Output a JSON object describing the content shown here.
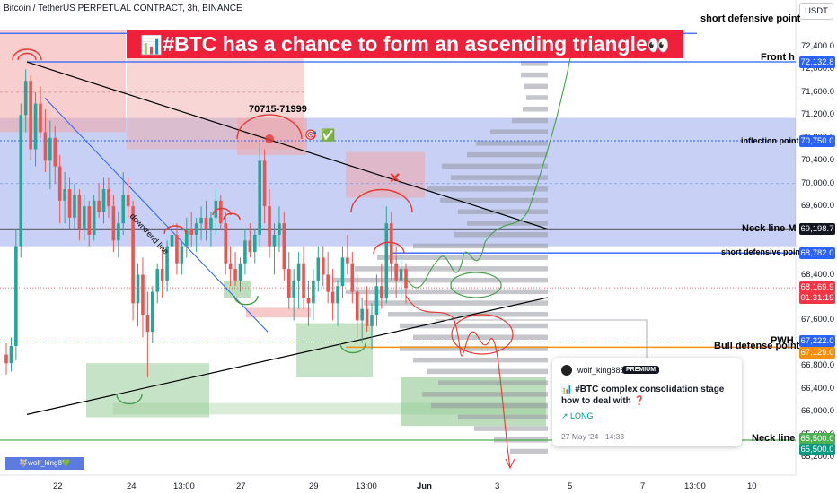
{
  "header": {
    "symbol_line": "Bitcoin / TetherUS PERPETUAL CONTRACT, 3h, BINANCE"
  },
  "currency": "USDT",
  "banner": {
    "icon": "📊",
    "text": "#BTC has a chance to form an ascending triangle",
    "eyes": "👀"
  },
  "annotations": {
    "short_defensive_top": "short defensive point",
    "front_h": "Front h",
    "range": "70715-71999",
    "inflection_point": "inflection point",
    "neck_line_m": "Neck line M",
    "short_defensive_mid": "short defensive point",
    "pwh": "PWH",
    "bull_defense": "Bull defense point",
    "neck_line": "Neck line",
    "downtrend_line": "downtrend line",
    "cross": "✕",
    "check": "✅",
    "target": "🎯"
  },
  "colors": {
    "up": "#26a69a",
    "down": "#ef5350",
    "blue_zone": "#7b91e6",
    "red_zone": "#f2a5a5",
    "green_zone": "#8fc88f",
    "blue_line": "#2962ff",
    "orange_line": "#f5900c"
  },
  "price_tags": [
    {
      "value": "72,132.8",
      "color": "#2962ff"
    },
    {
      "value": "70,750.0",
      "color": "#2962ff"
    },
    {
      "value": "69,198.7",
      "color": "#131722"
    },
    {
      "value": "68,782.0",
      "color": "#2962ff"
    },
    {
      "value": "68,169.9",
      "color": "#f23645"
    },
    {
      "value": "01:31:19",
      "color": "#f23645"
    },
    {
      "value": "67,222.0",
      "color": "#2962ff"
    },
    {
      "value": "67,129.0",
      "color": "#f5900c"
    },
    {
      "value": "65,500.0",
      "color": "#4caf50"
    },
    {
      "value": "65,500.0",
      "color": "#089981"
    }
  ],
  "card": {
    "user": "wolf_king888",
    "badge": "PREMIUM",
    "title": "📊 #BTC complex consolidation stage how to deal with ❓",
    "side": "↗ LONG",
    "date": "27 May '24 · 14:33"
  },
  "watermark": "🐺wolf_king8💚",
  "chart_data": {
    "type": "candlestick",
    "title": "Bitcoin / TetherUS PERPETUAL CONTRACT, 3h, BINANCE",
    "y_ticks": [
      72400,
      72000,
      71600,
      71200,
      70800,
      70400,
      70000,
      69600,
      69200,
      68800,
      68400,
      68000,
      67600,
      67200,
      66800,
      66400,
      66000,
      65600,
      65200
    ],
    "x_ticks": [
      "22",
      "24",
      "13:00",
      "27",
      "29",
      "13:00",
      "Jun",
      "3",
      "5",
      "7",
      "13:00",
      "10"
    ],
    "ylim": [
      65000,
      72700
    ],
    "levels": {
      "short_defensive_top": 72600,
      "front_h": 72132.8,
      "inflection_point": 70750,
      "neck_line_m": 69198.7,
      "short_defensive_mid": 68782,
      "last_price": 68169.9,
      "pwh": 67222,
      "bull_defense": 67129,
      "neck_line": 65500
    },
    "candles": [
      [
        67000,
        67200,
        66650,
        66850
      ],
      [
        66850,
        67300,
        66700,
        67150
      ],
      [
        67150,
        69200,
        66900,
        68900
      ],
      [
        68900,
        71400,
        68700,
        71200
      ],
      [
        71200,
        72000,
        70900,
        71800
      ],
      [
        71800,
        71900,
        70400,
        70600
      ],
      [
        70600,
        71600,
        70300,
        71400
      ],
      [
        71400,
        71700,
        70800,
        70900
      ],
      [
        70900,
        71300,
        70200,
        70400
      ],
      [
        70400,
        71100,
        69900,
        70800
      ],
      [
        70800,
        71000,
        70000,
        70300
      ],
      [
        70300,
        70500,
        69300,
        69700
      ],
      [
        69700,
        70200,
        69300,
        69900
      ],
      [
        69900,
        70100,
        69200,
        69400
      ],
      [
        69400,
        70000,
        69200,
        69800
      ],
      [
        69800,
        69900,
        69000,
        69200
      ],
      [
        69200,
        69800,
        69000,
        69600
      ],
      [
        69600,
        69700,
        68900,
        69100
      ],
      [
        69100,
        69800,
        69000,
        69700
      ],
      [
        69700,
        70000,
        69400,
        69500
      ],
      [
        69500,
        70100,
        69300,
        69900
      ],
      [
        69900,
        70100,
        69400,
        69600
      ],
      [
        69600,
        69800,
        68800,
        69000
      ],
      [
        69000,
        69500,
        68700,
        69300
      ],
      [
        69300,
        70200,
        69100,
        69800
      ],
      [
        69800,
        70100,
        69400,
        69600
      ],
      [
        69600,
        69700,
        67600,
        67900
      ],
      [
        67900,
        68600,
        67500,
        68400
      ],
      [
        68400,
        68700,
        67300,
        67700
      ],
      [
        67700,
        68100,
        66600,
        67400
      ],
      [
        67400,
        68200,
        67200,
        68100
      ],
      [
        68100,
        68600,
        67900,
        68500
      ],
      [
        68500,
        68900,
        68000,
        68300
      ],
      [
        68300,
        69000,
        68100,
        68900
      ],
      [
        68900,
        69300,
        68600,
        69100
      ],
      [
        69100,
        69300,
        68400,
        68600
      ],
      [
        68600,
        69000,
        68400,
        68900
      ],
      [
        68900,
        69400,
        68700,
        69200
      ],
      [
        69200,
        69500,
        68900,
        69100
      ],
      [
        69100,
        69400,
        68800,
        69300
      ],
      [
        69300,
        69600,
        69000,
        69400
      ],
      [
        69400,
        69700,
        69000,
        69200
      ],
      [
        69200,
        69500,
        68900,
        69400
      ],
      [
        69400,
        69900,
        69100,
        69700
      ],
      [
        69700,
        69800,
        69200,
        69300
      ],
      [
        69300,
        69500,
        68400,
        68600
      ],
      [
        68600,
        68900,
        68200,
        68500
      ],
      [
        68500,
        68800,
        68200,
        68300
      ],
      [
        68300,
        68700,
        68100,
        68600
      ],
      [
        68600,
        69200,
        68400,
        69000
      ],
      [
        69000,
        69300,
        68700,
        68800
      ],
      [
        68800,
        69200,
        68600,
        69100
      ],
      [
        69100,
        70700,
        68900,
        70400
      ],
      [
        70400,
        70600,
        69300,
        69600
      ],
      [
        69600,
        69900,
        68700,
        68900
      ],
      [
        68900,
        69300,
        68400,
        69100
      ],
      [
        69100,
        69600,
        68800,
        69300
      ],
      [
        69300,
        69500,
        68300,
        68500
      ],
      [
        68500,
        68800,
        67800,
        68000
      ],
      [
        68000,
        68500,
        67600,
        68300
      ],
      [
        68300,
        68800,
        67800,
        68600
      ],
      [
        68600,
        68900,
        67800,
        68000
      ],
      [
        68000,
        68300,
        67500,
        67900
      ],
      [
        67900,
        68500,
        67600,
        68300
      ],
      [
        68300,
        68900,
        68100,
        68700
      ],
      [
        68700,
        68900,
        68200,
        68400
      ],
      [
        68400,
        68800,
        67900,
        68100
      ],
      [
        68100,
        68500,
        67600,
        67900
      ],
      [
        67900,
        68300,
        67500,
        68200
      ],
      [
        68200,
        68900,
        68000,
        68700
      ],
      [
        68700,
        69100,
        68400,
        68600
      ],
      [
        68600,
        68800,
        67900,
        68100
      ],
      [
        68100,
        68400,
        67300,
        67600
      ],
      [
        67600,
        68000,
        67200,
        67800
      ],
      [
        67800,
        68200,
        67400,
        67500
      ],
      [
        67500,
        67900,
        67100,
        67700
      ],
      [
        67700,
        68400,
        67500,
        68200
      ],
      [
        68200,
        68600,
        67800,
        68000
      ],
      [
        68000,
        69600,
        67900,
        69300
      ],
      [
        69300,
        69500,
        68300,
        68600
      ],
      [
        68600,
        68900,
        68000,
        68300
      ],
      [
        68300,
        68700,
        68000,
        68500
      ],
      [
        68500,
        68600,
        67900,
        68170
      ]
    ],
    "trendlines": [
      {
        "name": "Neck line M",
        "y": 69198.7
      },
      {
        "name": "downtrend line"
      }
    ]
  }
}
